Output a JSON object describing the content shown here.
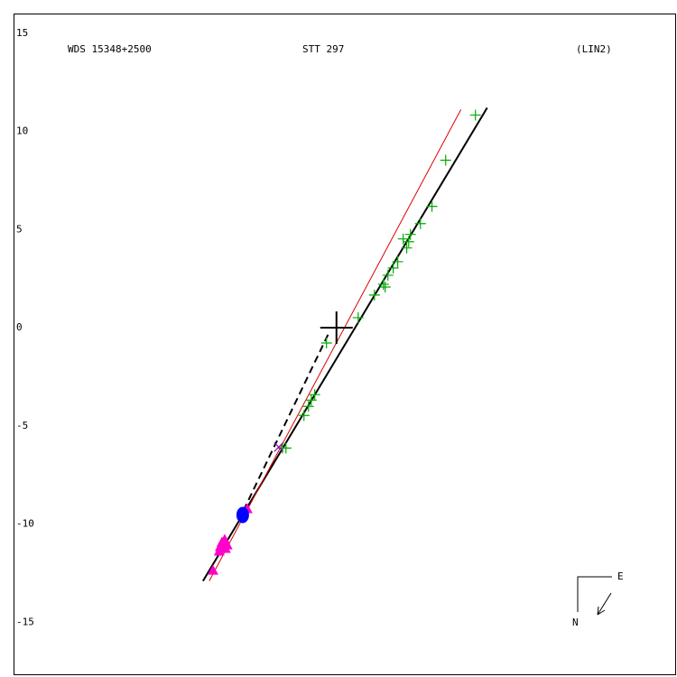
{
  "chart_data": {
    "type": "scatter",
    "title": "WDS 15348+2500",
    "subtitle": "STT 297",
    "annotation": "(LIN2)",
    "compass": {
      "east": "E",
      "north": "N"
    },
    "xlim": [
      -16.5,
      17.4
    ],
    "ylim": [
      -17.7,
      16.0
    ],
    "yticks": [
      15,
      10,
      5,
      0,
      -5,
      -10,
      -15
    ],
    "lines": [
      {
        "color": "#000000",
        "dash": false,
        "x": [
          -6.82,
          7.7
        ],
        "y": [
          -12.9,
          11.2
        ]
      },
      {
        "color": "#dd0000",
        "dash": false,
        "x": [
          -6.5,
          6.36
        ],
        "y": [
          -12.9,
          11.11
        ]
      },
      {
        "color": "#000000",
        "dash": true,
        "x": [
          -4.75,
          -0.37
        ],
        "y": [
          -9.31,
          -0.23
        ]
      }
    ],
    "series": [
      {
        "color": "#00aa00",
        "marker": "plus",
        "x": [
          7.1,
          5.58,
          4.88,
          4.29,
          3.78,
          3.69,
          3.41,
          3.59,
          3.13,
          2.9,
          2.63,
          2.4,
          2.49,
          1.94,
          1.11,
          -0.51,
          -1.11,
          -1.29,
          -1.43,
          -1.66,
          -2.58,
          -2.76
        ],
        "values": [
          10.83,
          8.53,
          6.18,
          5.3,
          4.75,
          4.38,
          4.52,
          4.06,
          3.36,
          3.04,
          2.67,
          2.21,
          2.07,
          1.66,
          0.51,
          -0.78,
          -3.41,
          -3.69,
          -4.01,
          -4.47,
          -6.13,
          -6.13
        ]
      },
      {
        "color": "#ff00cc",
        "marker": "triangle",
        "x": [
          -4.56,
          -5.71,
          -5.85,
          -5.58,
          -5.94,
          -5.67,
          -5.99,
          -6.31
        ],
        "values": [
          -9.22,
          -10.78,
          -10.92,
          -11.06,
          -11.15,
          -11.24,
          -11.38,
          -12.35
        ]
      },
      {
        "color": "#0000ff",
        "marker": "circle",
        "x": [
          -4.79
        ],
        "values": [
          -9.54
        ]
      },
      {
        "color": "#8800cc",
        "marker": "x",
        "x": [
          -2.95
        ],
        "values": [
          -6.08
        ]
      },
      {
        "color": "#000000",
        "marker": "big-plus",
        "x": [
          0
        ],
        "values": [
          0
        ]
      }
    ]
  }
}
